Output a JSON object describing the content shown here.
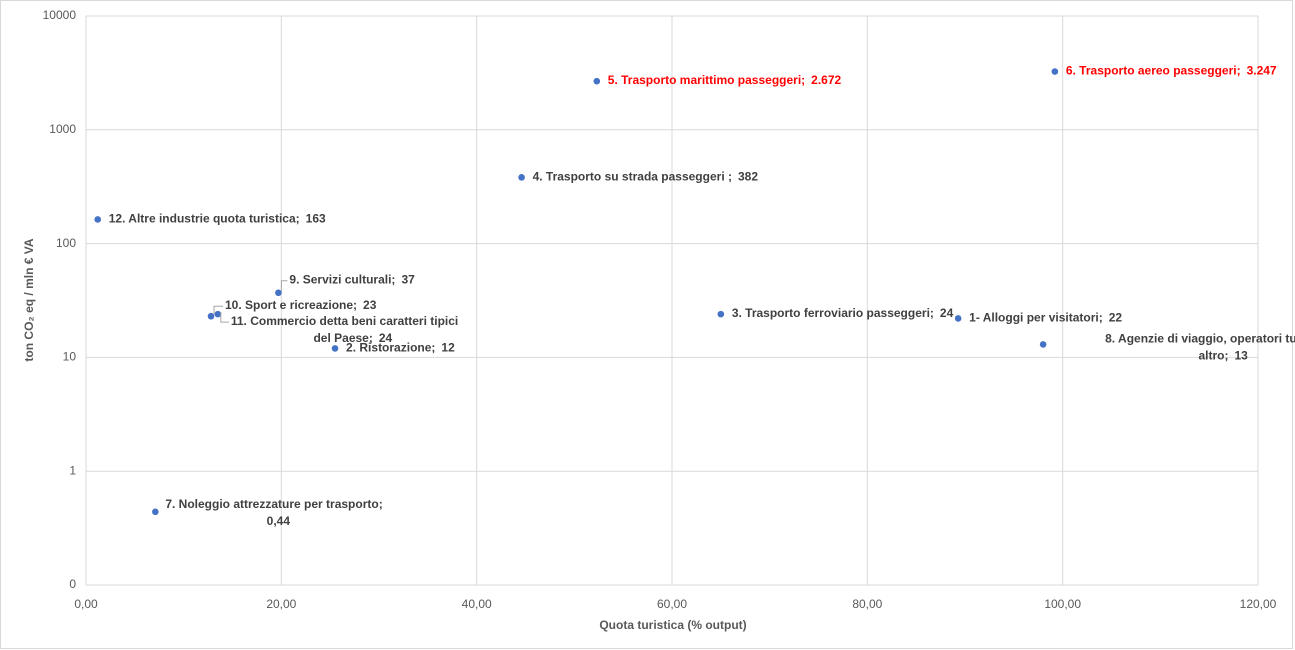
{
  "chart_data": {
    "type": "scatter",
    "x_label": "Quota turistica (% output)",
    "y_label": "ton CO₂ eq / mln € VA",
    "log_y": true,
    "grid": true,
    "color": "#4472c4",
    "names": [
      [
        "1- Alloggi per visitatori;"
      ],
      [
        "2. Ristorazione;"
      ],
      [
        "3. Trasporto  ferroviario passeggeri;"
      ],
      [
        "4. Trasporto su strada passeggeri ;"
      ],
      [
        "5. Trasporto marittimo passeggeri;"
      ],
      [
        "6. Trasporto aereo passeggeri;"
      ],
      [
        "7. Noleggio attrezzature per trasporto;"
      ],
      [
        "8. Agenzie di viaggio, operatori turistici e",
        "altro;"
      ],
      [
        "9. Servizi culturali;"
      ],
      [
        "10. Sport e ricreazione;"
      ],
      [
        "11. Commercio  detta beni caratteri tipici",
        "del Paese;"
      ],
      [
        "12. Altre industrie quota turistica;"
      ]
    ],
    "x": [
      89.3,
      25.5,
      65.0,
      44.6,
      52.3,
      99.2,
      7.1,
      98.0,
      19.7,
      12.8,
      13.5,
      1.2
    ],
    "values": [
      22,
      12,
      24,
      382,
      2672,
      3247,
      0.44,
      13,
      37,
      23,
      24,
      163
    ],
    "value_labels": [
      "22",
      "12",
      "24",
      "382",
      "2.672",
      "3.247",
      "0,44",
      "13",
      "37",
      "23",
      "24",
      "163"
    ],
    "label_colors": [
      "#404040",
      "#404040",
      "#404040",
      "#404040",
      "#ff0000",
      "#ff0000",
      "#404040",
      "#404040",
      "#404040",
      "#404040",
      "#404040",
      "#404040"
    ],
    "xlim": [
      0,
      120
    ],
    "xticks": [
      {
        "value": 0,
        "label": "0,00"
      },
      {
        "value": 20,
        "label": "20,00"
      },
      {
        "value": 40,
        "label": "40,00"
      },
      {
        "value": 60,
        "label": "60,00"
      },
      {
        "value": 80,
        "label": "80,00"
      },
      {
        "value": 100,
        "label": "100,00"
      },
      {
        "value": 120,
        "label": "120,00"
      }
    ],
    "ylim": [
      0.1,
      10000
    ],
    "yticks": [
      {
        "value": 0.1,
        "label": "0"
      },
      1,
      10,
      100,
      1000,
      10000
    ]
  }
}
